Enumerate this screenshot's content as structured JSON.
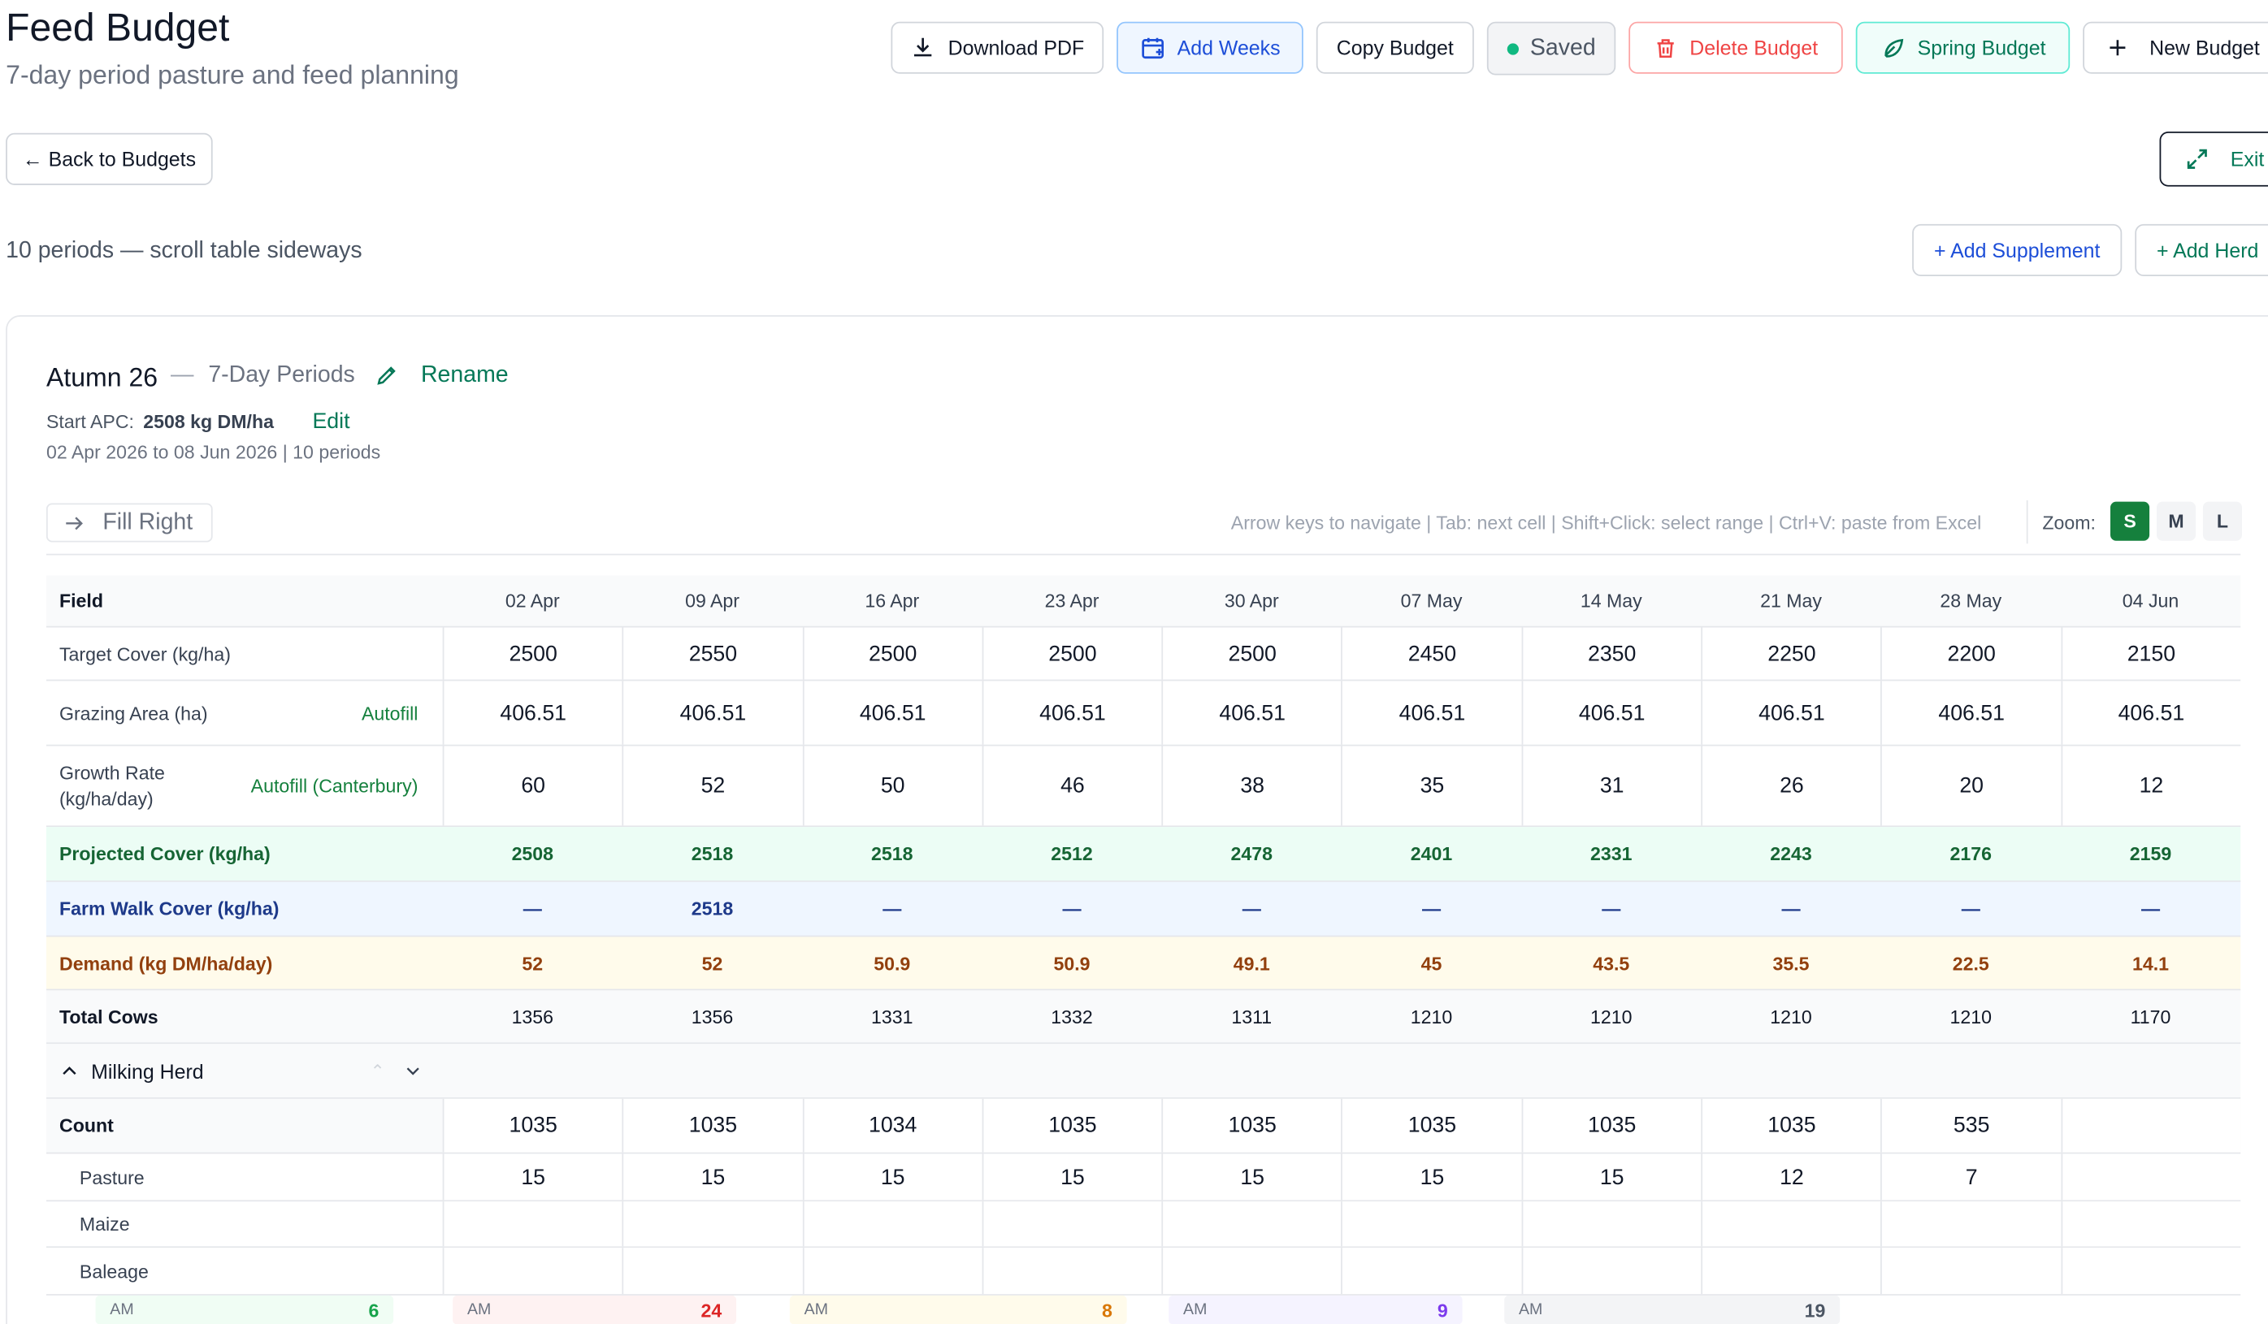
{
  "header": {
    "title": "Feed Budget",
    "subtitle": "7-day period pasture and feed planning"
  },
  "toolbar": {
    "download_pdf": "Download PDF",
    "add_weeks": "Add Weeks",
    "copy_budget": "Copy Budget",
    "saved": "Saved",
    "delete_budget": "Delete Budget",
    "spring_budget": "Spring Budget",
    "new_budget": "New Budget"
  },
  "nav": {
    "back": "← Back to Budgets",
    "exit": "Exit"
  },
  "summary": {
    "periods_note": "10 periods — scroll table sideways",
    "add_supplement": "+ Add Supplement",
    "add_herd": "+ Add Herd"
  },
  "budget": {
    "name": "Atumn 26",
    "separator": "—",
    "period_type": "7-Day Periods",
    "rename": "Rename",
    "start_apc_label": "Start APC:",
    "start_apc_value": "2508 kg DM/ha",
    "edit": "Edit",
    "date_range": "02 Apr 2026 to 08 Jun 2026  | 10 periods"
  },
  "grid_toolbar": {
    "fill_right": "Fill Right",
    "hint": "Arrow keys to navigate | Tab: next cell | Shift+Click: select range | Ctrl+V: paste from Excel",
    "zoom_label": "Zoom:",
    "zoom_options": [
      "S",
      "M",
      "L"
    ],
    "zoom_selected": "S"
  },
  "table": {
    "field_header": "Field",
    "columns": [
      "02 Apr",
      "09 Apr",
      "16 Apr",
      "23 Apr",
      "30 Apr",
      "07 May",
      "14 May",
      "21 May",
      "28 May",
      "04 Jun"
    ],
    "rows": {
      "target_cover": {
        "label": "Target Cover (kg/ha)",
        "values": [
          "2500",
          "2550",
          "2500",
          "2500",
          "2500",
          "2450",
          "2350",
          "2250",
          "2200",
          "2150"
        ]
      },
      "grazing_area": {
        "label": "Grazing Area (ha)",
        "autofill": "Autofill",
        "values": [
          "406.51",
          "406.51",
          "406.51",
          "406.51",
          "406.51",
          "406.51",
          "406.51",
          "406.51",
          "406.51",
          "406.51"
        ]
      },
      "growth_rate": {
        "label": "Growth Rate (kg/ha/day)",
        "autofill": "Autofill (Canterbury)",
        "values": [
          "60",
          "52",
          "50",
          "46",
          "38",
          "35",
          "31",
          "26",
          "20",
          "12"
        ]
      },
      "projected_cover": {
        "label": "Projected Cover (kg/ha)",
        "values": [
          "2508",
          "2518",
          "2518",
          "2512",
          "2478",
          "2401",
          "2331",
          "2243",
          "2176",
          "2159"
        ]
      },
      "farm_walk_cover": {
        "label": "Farm Walk Cover (kg/ha)",
        "values": [
          "—",
          "2518",
          "—",
          "—",
          "—",
          "—",
          "—",
          "—",
          "—",
          "—"
        ]
      },
      "demand": {
        "label": "Demand (kg DM/ha/day)",
        "values": [
          "52",
          "52",
          "50.9",
          "50.9",
          "49.1",
          "45",
          "43.5",
          "35.5",
          "22.5",
          "14.1"
        ]
      },
      "total_cows": {
        "label": "Total Cows",
        "values": [
          "1356",
          "1356",
          "1331",
          "1332",
          "1311",
          "1210",
          "1210",
          "1210",
          "1210",
          "1170"
        ]
      }
    },
    "herd": {
      "name": "Milking Herd",
      "count": {
        "label": "Count",
        "values": [
          "1035",
          "1035",
          "1034",
          "1035",
          "1035",
          "1035",
          "1035",
          "1035",
          "535",
          ""
        ]
      },
      "pasture": {
        "label": "Pasture",
        "values": [
          "15",
          "15",
          "15",
          "15",
          "15",
          "15",
          "15",
          "12",
          "7",
          ""
        ]
      },
      "maize": {
        "label": "Maize",
        "values": [
          "",
          "",
          "",
          "",
          "",
          "",
          "",
          "",
          "",
          ""
        ]
      },
      "baleage": {
        "label": "Baleage",
        "values": [
          "",
          "",
          "",
          "",
          "",
          "",
          "",
          "",
          "",
          ""
        ]
      }
    }
  },
  "bottom_strip": [
    {
      "label": "AM",
      "value": "6",
      "color": "#16a34a"
    },
    {
      "label": "AM",
      "value": "24",
      "color": "#dc2626"
    },
    {
      "label": "AM",
      "value": "8",
      "color": "#d97706"
    },
    {
      "label": "AM",
      "value": "9",
      "color": "#7c3aed"
    },
    {
      "label": "AM",
      "value": "19",
      "color": "#4b5563"
    }
  ],
  "icons": [
    "download-icon",
    "calendar-plus-icon",
    "trash-icon",
    "leaf-icon",
    "plus-icon",
    "expand-icon",
    "pencil-icon",
    "arrow-right-icon",
    "chevron-up-icon",
    "chevron-down-icon"
  ]
}
